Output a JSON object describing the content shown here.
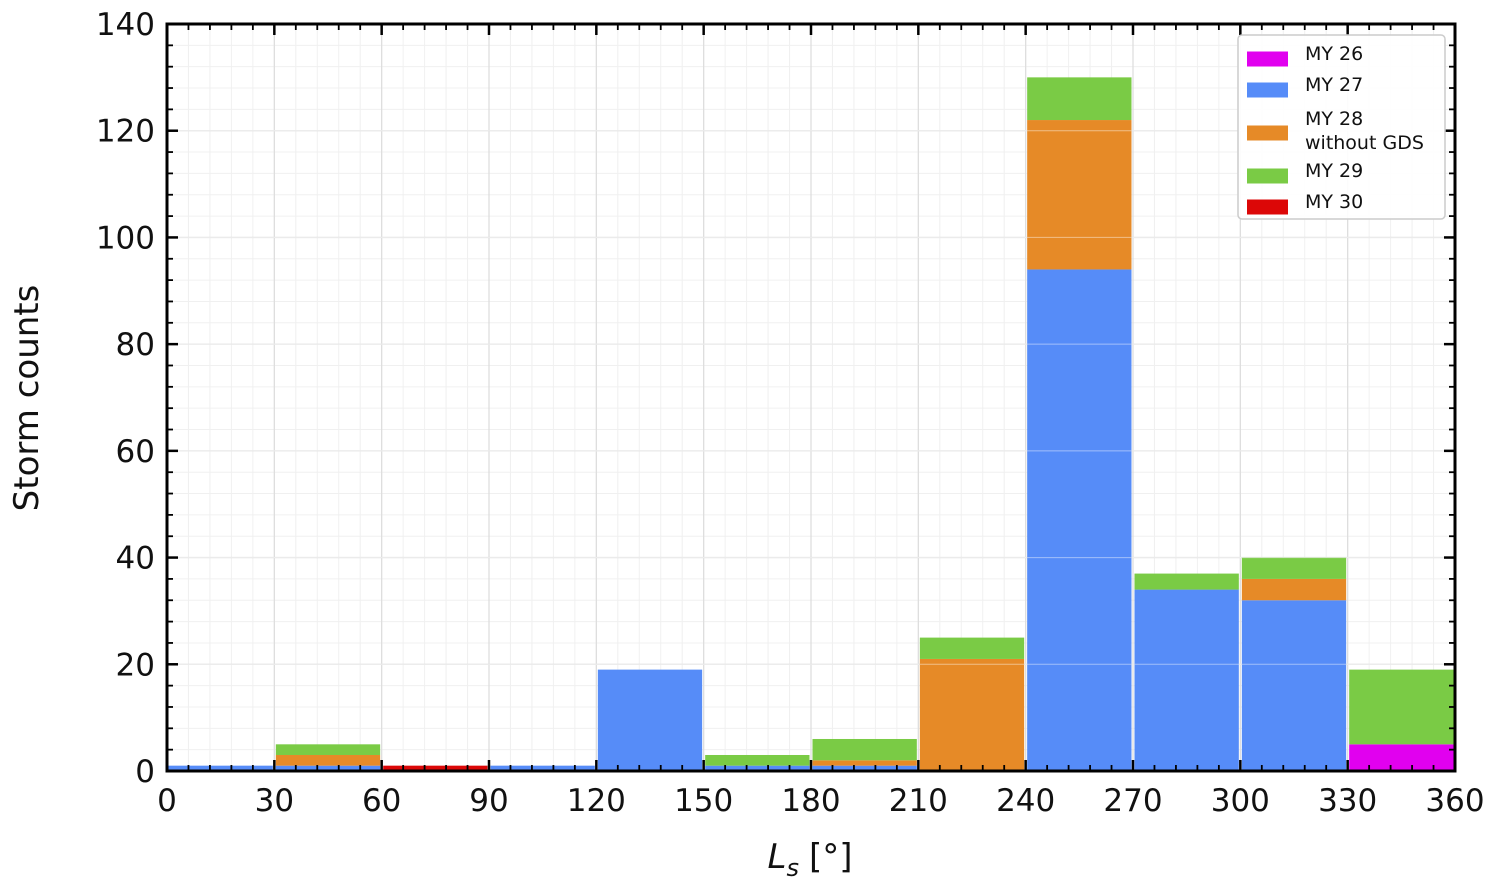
{
  "chart_data": {
    "type": "bar",
    "stacked": true,
    "xlabel_main": "L",
    "xlabel_sub": "s",
    "xlabel_unit": "[°]",
    "ylabel": "Storm counts",
    "xlim": [
      0,
      360
    ],
    "ylim": [
      0,
      140
    ],
    "x_ticks": [
      0,
      30,
      60,
      90,
      120,
      150,
      180,
      210,
      240,
      270,
      300,
      330,
      360
    ],
    "y_ticks": [
      0,
      20,
      40,
      60,
      80,
      100,
      120,
      140
    ],
    "x_tick_labels": [
      "0",
      "30",
      "60",
      "90",
      "120",
      "150",
      "180",
      "210",
      "240",
      "270",
      "300",
      "330",
      "360"
    ],
    "y_tick_labels": [
      "0",
      "20",
      "40",
      "60",
      "80",
      "100",
      "120",
      "140"
    ],
    "grid": true,
    "legend_position": "top-right",
    "bins": [
      [
        0,
        30
      ],
      [
        30,
        60
      ],
      [
        60,
        90
      ],
      [
        90,
        120
      ],
      [
        120,
        150
      ],
      [
        150,
        180
      ],
      [
        180,
        210
      ],
      [
        210,
        240
      ],
      [
        240,
        270
      ],
      [
        270,
        300
      ],
      [
        300,
        330
      ],
      [
        330,
        360
      ]
    ],
    "series": [
      {
        "name": "MY 26",
        "color": "#e100ef",
        "values": [
          0,
          0,
          0,
          0,
          0,
          0,
          0,
          0,
          0,
          0,
          0,
          5
        ]
      },
      {
        "name": "MY 27",
        "color": "#568cf8",
        "values": [
          1,
          1,
          0,
          1,
          19,
          1,
          1,
          0,
          94,
          34,
          32,
          0
        ]
      },
      {
        "name": "MY 28",
        "name_line2": "without GDS",
        "color": "#e68a27",
        "values": [
          0,
          2,
          0,
          0,
          0,
          0,
          1,
          21,
          28,
          0,
          4,
          0
        ]
      },
      {
        "name": "MY 29",
        "color": "#7acb45",
        "values": [
          0,
          2,
          0,
          0,
          0,
          2,
          4,
          4,
          8,
          3,
          4,
          14
        ]
      },
      {
        "name": "MY 30",
        "color": "#dc0707",
        "values": [
          0,
          0,
          1,
          0,
          0,
          0,
          0,
          0,
          0,
          0,
          0,
          0
        ]
      }
    ]
  }
}
